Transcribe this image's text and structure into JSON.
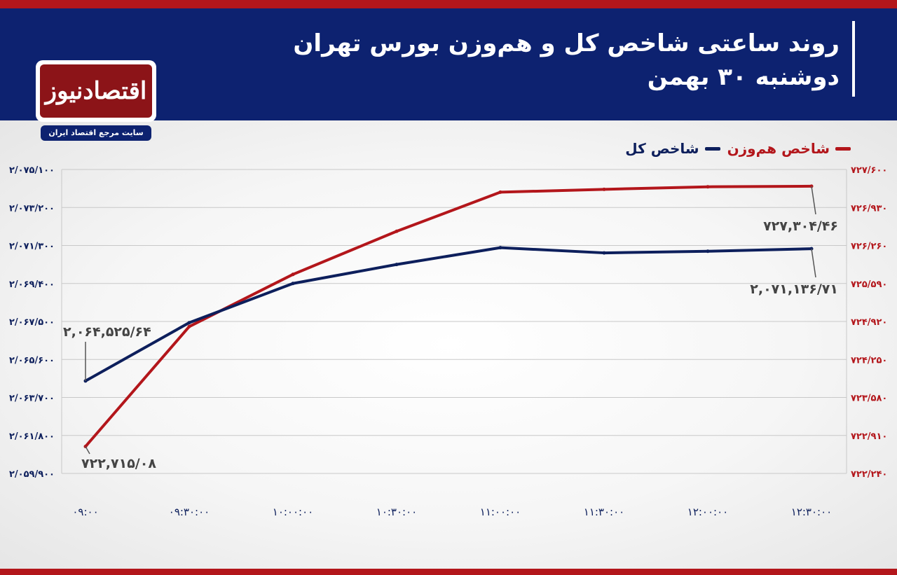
{
  "header": {
    "title_line1": "روند ساعتی شاخص کل و هم‌وزن بورس تهران",
    "title_line2": "دوشنبه ۳۰ بهمن"
  },
  "logo": {
    "name": "اقتصادنیوز",
    "tagline": "سایت مرجع اقتصاد ایران"
  },
  "colors": {
    "header_bg": "#0d2270",
    "accent_red": "#b3161b",
    "series_total": "#0d1f5c",
    "series_equal": "#b3161b"
  },
  "chart_data": {
    "type": "line",
    "title": "روند ساعتی شاخص کل و هم‌وزن بورس تهران",
    "subtitle": "دوشنبه ۳۰ بهمن",
    "x": [
      "۰۹:۰۰",
      "۰۹:۳۰:۰۰",
      "۱۰:۰۰:۰۰",
      "۱۰:۳۰:۰۰",
      "۱۱:۰۰:۰۰",
      "۱۱:۳۰:۰۰",
      "۱۲:۰۰:۰۰",
      "۱۲:۳۰:۰۰"
    ],
    "legend_position": "top-right",
    "grid": true,
    "series": [
      {
        "name": "شاخص کل",
        "axis": "left",
        "color": "#0d1f5c",
        "values": [
          2064525.64,
          2067440,
          2069400,
          2070350,
          2071190,
          2070930,
          2071010,
          2071136.71
        ],
        "start_label": "۲,۰۶۴,۵۲۵/۶۴",
        "end_label": "۲,۰۷۱,۱۳۶/۷۱"
      },
      {
        "name": "شاخص هم‌وزن",
        "axis": "right",
        "color": "#b3161b",
        "values": [
          722715.08,
          724830,
          725750,
          726510,
          727200,
          727250,
          727295,
          727304.46
        ],
        "start_label": "۷۲۲,۷۱۵/۰۸",
        "end_label": "۷۲۷,۳۰۴/۴۶"
      }
    ],
    "y_left": {
      "min": 2059900,
      "max": 2075100,
      "ticks": [
        "۲/۰۷۵/۱۰۰",
        "۲/۰۷۳/۲۰۰",
        "۲/۰۷۱/۳۰۰",
        "۲/۰۶۹/۴۰۰",
        "۲/۰۶۷/۵۰۰",
        "۲/۰۶۵/۶۰۰",
        "۲/۰۶۳/۷۰۰",
        "۲/۰۶۱/۸۰۰",
        "۲/۰۵۹/۹۰۰"
      ]
    },
    "y_right": {
      "min": 722240,
      "max": 727600,
      "ticks": [
        "۷۲۷/۶۰۰",
        "۷۲۶/۹۳۰",
        "۷۲۶/۲۶۰",
        "۷۲۵/۵۹۰",
        "۷۲۴/۹۲۰",
        "۷۲۴/۲۵۰",
        "۷۲۳/۵۸۰",
        "۷۲۲/۹۱۰",
        "۷۲۲/۲۴۰"
      ]
    }
  }
}
